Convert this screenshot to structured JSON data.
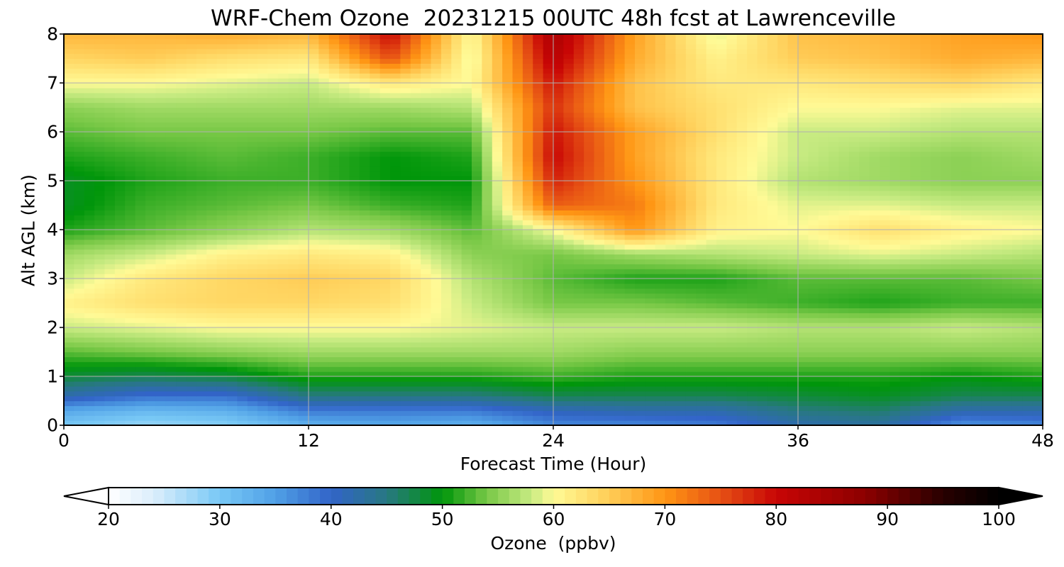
{
  "chart_data": {
    "type": "heatmap",
    "title": "WRF-Chem Ozone  20231215 00UTC 48h fcst at Lawrenceville",
    "xlabel": "Forecast Time (Hour)",
    "ylabel": "Alt AGL (km)",
    "xlim": [
      0,
      48
    ],
    "ylim": [
      0,
      8
    ],
    "xticks": [
      "0",
      "12",
      "24",
      "36",
      "48"
    ],
    "yticks": [
      "0",
      "1",
      "2",
      "3",
      "4",
      "5",
      "6",
      "7",
      "8"
    ],
    "grid": true,
    "x": [
      0,
      4,
      8,
      12,
      16,
      20,
      24,
      28,
      32,
      36,
      40,
      44,
      48
    ],
    "y": [
      0.0,
      0.3,
      0.6,
      1.0,
      1.5,
      2.0,
      2.5,
      3.0,
      3.5,
      4.0,
      4.5,
      5.0,
      5.5,
      6.0,
      6.5,
      7.0,
      7.5,
      8.0
    ],
    "z": [
      [
        30,
        28,
        29,
        33,
        34,
        33,
        37,
        37,
        38,
        42,
        43,
        36,
        37
      ],
      [
        34,
        32,
        33,
        38,
        38,
        38,
        41,
        42,
        42,
        45,
        46,
        42,
        42
      ],
      [
        42,
        39,
        39,
        45,
        45,
        45,
        47,
        47,
        47,
        48,
        49,
        47,
        47
      ],
      [
        48,
        47,
        48,
        51,
        51,
        51,
        52,
        51,
        51,
        51,
        51,
        50,
        51
      ],
      [
        53,
        54,
        55,
        56,
        56,
        56,
        56,
        55,
        55,
        55,
        55,
        55,
        55
      ],
      [
        58,
        59,
        60,
        60,
        60,
        59,
        58,
        58,
        58,
        57,
        57,
        58,
        57
      ],
      [
        61,
        63,
        64,
        64,
        63,
        58,
        54,
        54,
        53,
        52,
        51,
        52,
        52
      ],
      [
        58,
        62,
        64,
        65,
        64,
        57,
        53,
        51,
        51,
        53,
        53,
        53,
        54
      ],
      [
        56,
        58,
        61,
        62,
        61,
        55,
        54,
        56,
        57,
        58,
        59,
        58,
        57
      ],
      [
        51,
        53,
        55,
        57,
        56,
        53,
        60,
        70,
        61,
        60,
        63,
        61,
        60
      ],
      [
        49,
        52,
        53,
        54,
        52,
        51,
        74,
        72,
        62,
        59,
        59,
        58,
        58
      ],
      [
        49,
        51,
        52,
        52,
        50,
        50,
        78,
        70,
        62,
        57,
        56,
        55,
        55
      ],
      [
        51,
        52,
        53,
        52,
        50,
        51,
        80,
        69,
        62,
        58,
        56,
        55,
        56
      ],
      [
        53,
        54,
        54,
        54,
        53,
        53,
        79,
        69,
        63,
        58,
        58,
        57,
        57
      ],
      [
        55,
        56,
        56,
        56,
        56,
        57,
        77,
        66,
        63,
        60,
        60,
        59,
        59
      ],
      [
        60,
        60,
        59,
        58,
        62,
        60,
        79,
        66,
        62,
        62,
        63,
        64,
        62
      ],
      [
        64,
        65,
        63,
        62,
        75,
        59,
        82,
        68,
        61,
        65,
        66,
        68,
        67
      ],
      [
        67,
        67,
        68,
        67,
        80,
        60,
        84,
        69,
        59,
        66,
        67,
        69,
        70
      ]
    ],
    "colorbar": {
      "label": "Ozone  (ppbv)",
      "ticks": [
        "20",
        "30",
        "40",
        "50",
        "60",
        "70",
        "80",
        "90",
        "100"
      ],
      "min": 20,
      "max": 100,
      "extend": "both"
    }
  }
}
